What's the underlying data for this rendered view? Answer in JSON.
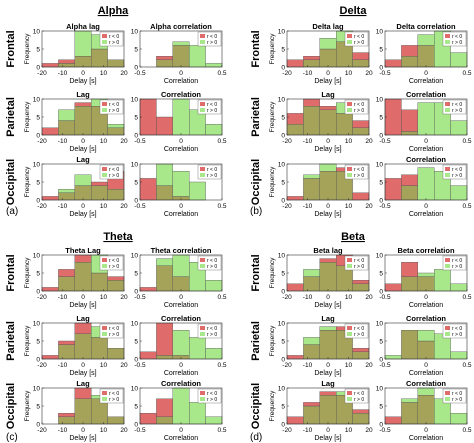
{
  "titles": {
    "a": "Alpha",
    "b": "Delta",
    "c": "Theta",
    "d": "Beta"
  },
  "panel_letters": {
    "a": "(a)",
    "b": "(b)",
    "c": "(c)",
    "d": "(d)"
  },
  "row_labels": [
    "Frontal",
    "Parietal",
    "Occipital"
  ],
  "legend": {
    "neg": "r < 0",
    "pos": "r > 0"
  },
  "colors": {
    "neg": "#e06b6b",
    "pos": "#a8e88a",
    "overlap": "#a5a35a",
    "axis": "#333333"
  },
  "axis_text": {
    "ylabel": "Frequency",
    "lag_xlabel": "Delay [s]",
    "corr_xlabel": "Correlation",
    "lag_ticks": [
      "-20",
      "-10",
      "0",
      "10",
      "20"
    ],
    "corr_ticks": [
      "-0.5",
      "0",
      "0.5"
    ],
    "y_ticks": [
      "0",
      "5",
      "10"
    ]
  },
  "chart_data": [
    {
      "type": "bar",
      "panel": "a",
      "region": "Frontal",
      "kind": "lag",
      "title": "Alpha lag",
      "xlim": [
        -20,
        20
      ],
      "ylim": [
        0,
        10
      ],
      "bin_edges": [
        -20,
        -12,
        -4,
        4,
        12,
        20
      ],
      "series": [
        {
          "name": "r < 0",
          "values": [
            1,
            2,
            3,
            5,
            2
          ]
        },
        {
          "name": "r > 0",
          "values": [
            0,
            1,
            10,
            9,
            2
          ]
        }
      ]
    },
    {
      "type": "bar",
      "panel": "a",
      "region": "Frontal",
      "kind": "corr",
      "title": "Alpha correlation",
      "xlim": [
        -0.5,
        0.5
      ],
      "ylim": [
        0,
        10
      ],
      "bin_edges": [
        -0.5,
        -0.3,
        -0.1,
        0.1,
        0.3,
        0.5
      ],
      "series": [
        {
          "name": "r < 0",
          "values": [
            0,
            3,
            6,
            0,
            0
          ]
        },
        {
          "name": "r > 0",
          "values": [
            0,
            2,
            7,
            6,
            1
          ]
        }
      ]
    },
    {
      "type": "bar",
      "panel": "a",
      "region": "Parietal",
      "kind": "lag",
      "title": "Lag",
      "xlim": [
        -20,
        20
      ],
      "ylim": [
        0,
        10
      ],
      "bin_edges": [
        -20,
        -12,
        -4,
        4,
        12,
        20
      ],
      "series": [
        {
          "name": "r < 0",
          "values": [
            2,
            4,
            9,
            8,
            2
          ]
        },
        {
          "name": "r > 0",
          "values": [
            0,
            7,
            8,
            10,
            3
          ]
        }
      ]
    },
    {
      "type": "bar",
      "panel": "a",
      "region": "Parietal",
      "kind": "corr",
      "title": "Correlation",
      "xlim": [
        -0.5,
        0.5
      ],
      "ylim": [
        0,
        10
      ],
      "bin_edges": [
        -0.5,
        -0.3,
        -0.1,
        0.1,
        0.3,
        0.5
      ],
      "series": [
        {
          "name": "r < 0",
          "values": [
            10,
            5,
            0,
            0,
            0
          ]
        },
        {
          "name": "r > 0",
          "values": [
            0,
            0,
            10,
            7,
            3
          ]
        }
      ]
    },
    {
      "type": "bar",
      "panel": "a",
      "region": "Occipital",
      "kind": "lag",
      "title": "Lag",
      "xlim": [
        -20,
        20
      ],
      "ylim": [
        0,
        10
      ],
      "bin_edges": [
        -20,
        -12,
        -4,
        4,
        12,
        20
      ],
      "series": [
        {
          "name": "r < 0",
          "values": [
            1,
            2,
            4,
            5,
            8
          ]
        },
        {
          "name": "r > 0",
          "values": [
            0,
            3,
            7,
            4,
            3
          ]
        }
      ]
    },
    {
      "type": "bar",
      "panel": "a",
      "region": "Occipital",
      "kind": "corr",
      "title": "",
      "xlim": [
        -0.5,
        0.5
      ],
      "ylim": [
        0,
        10
      ],
      "bin_edges": [
        -0.5,
        -0.3,
        -0.1,
        0.1,
        0.3,
        0.5
      ],
      "series": [
        {
          "name": "r < 0",
          "values": [
            6,
            4,
            1,
            0,
            0
          ]
        },
        {
          "name": "r > 0",
          "values": [
            0,
            10,
            8,
            5,
            0
          ]
        }
      ]
    },
    {
      "type": "bar",
      "panel": "b",
      "region": "Frontal",
      "kind": "lag",
      "title": "Delta lag",
      "xlim": [
        -20,
        20
      ],
      "ylim": [
        0,
        10
      ],
      "bin_edges": [
        -20,
        -12,
        -4,
        4,
        12,
        20
      ],
      "series": [
        {
          "name": "r < 0",
          "values": [
            2,
            3,
            5,
            7,
            4
          ]
        },
        {
          "name": "r > 0",
          "values": [
            0,
            2,
            8,
            10,
            2
          ]
        }
      ]
    },
    {
      "type": "bar",
      "panel": "b",
      "region": "Frontal",
      "kind": "corr",
      "title": "Delta correlation",
      "xlim": [
        -0.5,
        0.5
      ],
      "ylim": [
        0,
        10
      ],
      "bin_edges": [
        -0.5,
        -0.3,
        -0.1,
        0.1,
        0.3,
        0.5
      ],
      "series": [
        {
          "name": "r < 0",
          "values": [
            2,
            6,
            6,
            0,
            0
          ]
        },
        {
          "name": "r > 0",
          "values": [
            0,
            3,
            9,
            10,
            4
          ]
        }
      ]
    },
    {
      "type": "bar",
      "panel": "b",
      "region": "Parietal",
      "kind": "lag",
      "title": "Lag",
      "xlim": [
        -20,
        20
      ],
      "ylim": [
        0,
        10
      ],
      "bin_edges": [
        -20,
        -12,
        -4,
        4,
        12,
        20
      ],
      "series": [
        {
          "name": "r < 0",
          "values": [
            6,
            10,
            8,
            6,
            4
          ]
        },
        {
          "name": "r > 0",
          "values": [
            3,
            8,
            7,
            9,
            2
          ]
        }
      ]
    },
    {
      "type": "bar",
      "panel": "b",
      "region": "Parietal",
      "kind": "corr",
      "title": "Correlation",
      "xlim": [
        -0.5,
        0.5
      ],
      "ylim": [
        0,
        10
      ],
      "bin_edges": [
        -0.5,
        -0.3,
        -0.1,
        0.1,
        0.3,
        0.5
      ],
      "series": [
        {
          "name": "r < 0",
          "values": [
            10,
            7,
            0,
            0,
            0
          ]
        },
        {
          "name": "r > 0",
          "values": [
            0,
            1,
            9,
            9,
            4
          ]
        }
      ]
    },
    {
      "type": "bar",
      "panel": "b",
      "region": "Occipital",
      "kind": "lag",
      "title": "",
      "xlim": [
        -20,
        20
      ],
      "ylim": [
        0,
        10
      ],
      "bin_edges": [
        -20,
        -12,
        -4,
        4,
        12,
        20
      ],
      "series": [
        {
          "name": "r < 0",
          "values": [
            1,
            6,
            8,
            9,
            2
          ]
        },
        {
          "name": "r > 0",
          "values": [
            0,
            7,
            10,
            8,
            0
          ]
        }
      ]
    },
    {
      "type": "bar",
      "panel": "b",
      "region": "Occipital",
      "kind": "corr",
      "title": "Correlation",
      "xlim": [
        -0.5,
        0.5
      ],
      "ylim": [
        0,
        10
      ],
      "bin_edges": [
        -0.5,
        -0.3,
        -0.1,
        0.1,
        0.3,
        0.5
      ],
      "series": [
        {
          "name": "r < 0",
          "values": [
            6,
            7,
            0,
            0,
            0
          ]
        },
        {
          "name": "r > 0",
          "values": [
            0,
            4,
            9,
            8,
            4
          ]
        }
      ]
    },
    {
      "type": "bar",
      "panel": "c",
      "region": "Frontal",
      "kind": "lag",
      "title": "Theta Lag",
      "xlim": [
        -20,
        20
      ],
      "ylim": [
        0,
        10
      ],
      "bin_edges": [
        -20,
        -12,
        -4,
        4,
        12,
        20
      ],
      "series": [
        {
          "name": "r < 0",
          "values": [
            1,
            6,
            10,
            5,
            4
          ]
        },
        {
          "name": "r > 0",
          "values": [
            0,
            4,
            8,
            10,
            3
          ]
        }
      ]
    },
    {
      "type": "bar",
      "panel": "c",
      "region": "Frontal",
      "kind": "corr",
      "title": "Theta correlation",
      "xlim": [
        -0.5,
        0.5
      ],
      "ylim": [
        0,
        10
      ],
      "bin_edges": [
        -0.5,
        -0.3,
        -0.1,
        0.1,
        0.3,
        0.5
      ],
      "series": [
        {
          "name": "r < 0",
          "values": [
            1,
            7,
            4,
            0,
            0
          ]
        },
        {
          "name": "r > 0",
          "values": [
            0,
            9,
            10,
            8,
            3
          ]
        }
      ]
    },
    {
      "type": "bar",
      "panel": "c",
      "region": "Parietal",
      "kind": "lag",
      "title": "Lag",
      "xlim": [
        -20,
        20
      ],
      "ylim": [
        0,
        10
      ],
      "bin_edges": [
        -20,
        -12,
        -4,
        4,
        12,
        20
      ],
      "series": [
        {
          "name": "r < 0",
          "values": [
            1,
            5,
            10,
            6,
            3
          ]
        },
        {
          "name": "r > 0",
          "values": [
            0,
            4,
            7,
            9,
            3
          ]
        }
      ]
    },
    {
      "type": "bar",
      "panel": "c",
      "region": "Parietal",
      "kind": "corr",
      "title": "Correlation",
      "xlim": [
        -0.5,
        0.5
      ],
      "ylim": [
        0,
        10
      ],
      "bin_edges": [
        -0.5,
        -0.3,
        -0.1,
        0.1,
        0.3,
        0.5
      ],
      "series": [
        {
          "name": "r < 0",
          "values": [
            2,
            10,
            1,
            0,
            0
          ]
        },
        {
          "name": "r > 0",
          "values": [
            0,
            1,
            8,
            6,
            3
          ]
        }
      ]
    },
    {
      "type": "bar",
      "panel": "c",
      "region": "Occipital",
      "kind": "lag",
      "title": "Lag",
      "xlim": [
        -20,
        20
      ],
      "ylim": [
        0,
        10
      ],
      "bin_edges": [
        -20,
        -12,
        -4,
        4,
        12,
        20
      ],
      "series": [
        {
          "name": "r < 0",
          "values": [
            0,
            3,
            10,
            7,
            2
          ]
        },
        {
          "name": "r > 0",
          "values": [
            0,
            2,
            7,
            8,
            2
          ]
        }
      ]
    },
    {
      "type": "bar",
      "panel": "c",
      "region": "Occipital",
      "kind": "corr",
      "title": "Correlation",
      "xlim": [
        -0.5,
        0.5
      ],
      "ylim": [
        0,
        10
      ],
      "bin_edges": [
        -0.5,
        -0.3,
        -0.1,
        0.1,
        0.3,
        0.5
      ],
      "series": [
        {
          "name": "r < 0",
          "values": [
            3,
            7,
            0,
            0,
            0
          ]
        },
        {
          "name": "r > 0",
          "values": [
            0,
            2,
            10,
            6,
            2
          ]
        }
      ]
    },
    {
      "type": "bar",
      "panel": "d",
      "region": "Frontal",
      "kind": "lag",
      "title": "Beta lag",
      "xlim": [
        -20,
        20
      ],
      "ylim": [
        0,
        10
      ],
      "bin_edges": [
        -20,
        -12,
        -4,
        4,
        12,
        20
      ],
      "series": [
        {
          "name": "r < 0",
          "values": [
            2,
            4,
            9,
            10,
            3
          ]
        },
        {
          "name": "r > 0",
          "values": [
            0,
            6,
            8,
            7,
            2
          ]
        }
      ]
    },
    {
      "type": "bar",
      "panel": "d",
      "region": "Frontal",
      "kind": "corr",
      "title": "Beta correlation",
      "xlim": [
        -0.5,
        0.5
      ],
      "ylim": [
        0,
        10
      ],
      "bin_edges": [
        -0.5,
        -0.3,
        -0.1,
        0.1,
        0.3,
        0.5
      ],
      "series": [
        {
          "name": "r < 0",
          "values": [
            2,
            8,
            4,
            0,
            0
          ]
        },
        {
          "name": "r > 0",
          "values": [
            0,
            4,
            5,
            6,
            2
          ]
        }
      ]
    },
    {
      "type": "bar",
      "panel": "d",
      "region": "Parietal",
      "kind": "lag",
      "title": "Lag",
      "xlim": [
        -20,
        20
      ],
      "ylim": [
        0,
        10
      ],
      "bin_edges": [
        -20,
        -12,
        -4,
        4,
        12,
        20
      ],
      "series": [
        {
          "name": "r < 0",
          "values": [
            1,
            4,
            8,
            9,
            3
          ]
        },
        {
          "name": "r > 0",
          "values": [
            0,
            6,
            9,
            8,
            2
          ]
        }
      ]
    },
    {
      "type": "bar",
      "panel": "d",
      "region": "Parietal",
      "kind": "corr",
      "title": "Correlation",
      "xlim": [
        -0.5,
        0.5
      ],
      "ylim": [
        0,
        10
      ],
      "bin_edges": [
        -0.5,
        -0.3,
        -0.1,
        0.1,
        0.3,
        0.5
      ],
      "series": [
        {
          "name": "r < 0",
          "values": [
            0,
            8,
            5,
            0,
            0
          ]
        },
        {
          "name": "r > 0",
          "values": [
            1,
            8,
            8,
            7,
            2
          ]
        }
      ]
    },
    {
      "type": "bar",
      "panel": "d",
      "region": "Occipital",
      "kind": "lag",
      "title": "Lag",
      "xlim": [
        -20,
        20
      ],
      "ylim": [
        0,
        10
      ],
      "bin_edges": [
        -20,
        -12,
        -4,
        4,
        12,
        20
      ],
      "series": [
        {
          "name": "r < 0",
          "values": [
            2,
            6,
            9,
            8,
            4
          ]
        },
        {
          "name": "r > 0",
          "values": [
            0,
            5,
            8,
            9,
            3
          ]
        }
      ]
    },
    {
      "type": "bar",
      "panel": "d",
      "region": "Occipital",
      "kind": "corr",
      "title": "Correlation",
      "xlim": [
        -0.5,
        0.5
      ],
      "ylim": [
        0,
        10
      ],
      "bin_edges": [
        -0.5,
        -0.3,
        -0.1,
        0.1,
        0.3,
        0.5
      ],
      "series": [
        {
          "name": "r < 0",
          "values": [
            2,
            6,
            8,
            0,
            0
          ]
        },
        {
          "name": "r > 0",
          "values": [
            0,
            7,
            10,
            7,
            3
          ]
        }
      ]
    }
  ]
}
